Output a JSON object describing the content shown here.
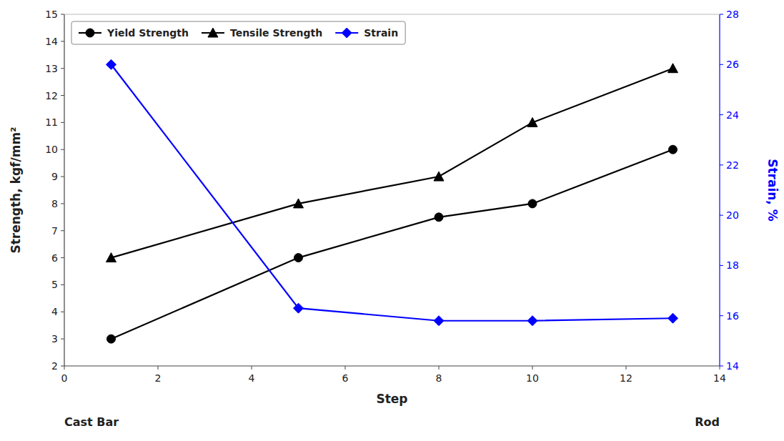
{
  "chart_data": {
    "type": "line",
    "x_label": "Step",
    "y_label": "Strength, kgf/mm²",
    "y2_label": "Strain, %",
    "x": [
      1,
      5,
      8,
      10,
      13
    ],
    "series": [
      {
        "name": "Yield Strength",
        "color": "black",
        "marker": "circle",
        "values": [
          3.0,
          6.0,
          7.5,
          8.0,
          10.0
        ]
      },
      {
        "name": "Tensile Strength",
        "color": "black",
        "marker": "triangle",
        "values": [
          6.0,
          8.0,
          9.0,
          11.0,
          13.0
        ]
      },
      {
        "name": "Strain",
        "color": "blue",
        "marker": "diamond",
        "axis": "y2",
        "values": [
          26.0,
          16.3,
          15.8,
          15.8,
          15.9
        ]
      }
    ],
    "xlim": [
      0,
      14
    ],
    "xticks": [
      0,
      2,
      4,
      6,
      8,
      10,
      12,
      14
    ],
    "ylim": [
      2,
      15
    ],
    "yticks": [
      2,
      3,
      4,
      5,
      6,
      7,
      8,
      9,
      10,
      11,
      12,
      13,
      14,
      15
    ],
    "y2lim": [
      14,
      28
    ],
    "y2ticks": [
      14,
      16,
      18,
      20,
      22,
      24,
      26,
      28
    ],
    "legend": "upper left",
    "grid": false,
    "annotations": [
      {
        "text": "Cast Bar",
        "x": 0
      },
      {
        "text": "Rod",
        "x": 14
      }
    ]
  }
}
